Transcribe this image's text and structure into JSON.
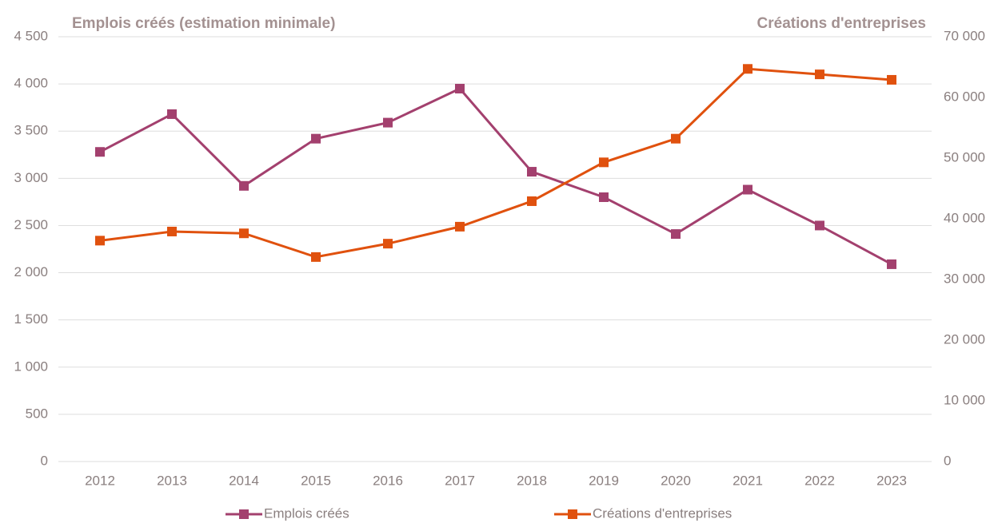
{
  "chart_data": {
    "type": "line",
    "y_title": "Emplois créés (estimation minimale)",
    "y2_title": "Créations d'entreprises",
    "categories": [
      "2012",
      "2013",
      "2014",
      "2015",
      "2016",
      "2017",
      "2018",
      "2019",
      "2020",
      "2021",
      "2022",
      "2023"
    ],
    "series": [
      {
        "name": "Emplois créés",
        "color": "#a3406e",
        "values": [
          3280,
          3680,
          2920,
          3420,
          3590,
          3950,
          3070,
          2800,
          2410,
          2880,
          2500,
          2090
        ]
      },
      {
        "name": "Créations d'entreprises",
        "color": "#e0510e",
        "axis": "y2",
        "values": [
          36400,
          37900,
          37600,
          33700,
          35900,
          38700,
          42900,
          49300,
          53200,
          64700,
          63800,
          62900
        ]
      }
    ],
    "ylim": [
      0,
      4500
    ],
    "yticks": [
      0,
      500,
      {
        "value": 1000,
        "label": "1 000"
      },
      {
        "value": 1500,
        "label": "1 500"
      },
      {
        "value": 2000,
        "label": "2 000"
      },
      {
        "value": 2500,
        "label": "2 500"
      },
      {
        "value": 3000,
        "label": "3 000"
      },
      {
        "value": 3500,
        "label": "3 500"
      },
      {
        "value": 4000,
        "label": "4 000"
      },
      {
        "value": 4500,
        "label": "4 500"
      }
    ],
    "y2lim": [
      0,
      70000
    ],
    "y2ticks": [
      0,
      {
        "value": 10000,
        "label": "10 000"
      },
      {
        "value": 20000,
        "label": "20 000"
      },
      {
        "value": 30000,
        "label": "30 000"
      },
      {
        "value": 40000,
        "label": "40 000"
      },
      {
        "value": 50000,
        "label": "50 000"
      },
      {
        "value": 60000,
        "label": "60 000"
      },
      {
        "value": 70000,
        "label": "70 000"
      }
    ],
    "grid": true
  }
}
